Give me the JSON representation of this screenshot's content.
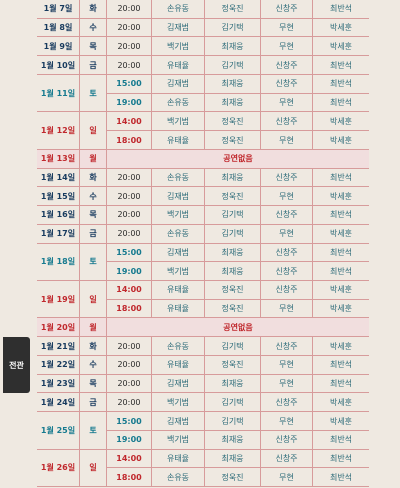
{
  "side_tab": {
    "label": "전관"
  },
  "off_label": "공연없음",
  "rows": [
    {
      "date": "1월 7일",
      "day": "화",
      "time": "20:00",
      "cast": [
        "손유동",
        "정욱진",
        "신창주",
        "최반석"
      ]
    },
    {
      "date": "1월 8일",
      "day": "수",
      "time": "20:00",
      "cast": [
        "김재범",
        "김기택",
        "무현",
        "박세훈"
      ]
    },
    {
      "date": "1월 9일",
      "day": "목",
      "time": "20:00",
      "cast": [
        "백기범",
        "최재웅",
        "무현",
        "박세훈"
      ]
    },
    {
      "date": "1월 10일",
      "day": "금",
      "time": "20:00",
      "cast": [
        "유태율",
        "김기택",
        "신창주",
        "최반석"
      ]
    },
    {
      "date": "1월 11일",
      "day": "토",
      "time": "15:00",
      "cast": [
        "김재범",
        "최재웅",
        "신창주",
        "최반석"
      ]
    },
    {
      "date": "",
      "day": "",
      "time": "19:00",
      "cast": [
        "손유동",
        "최재웅",
        "무현",
        "최반석"
      ]
    },
    {
      "date": "1월 12일",
      "day": "일",
      "time": "14:00",
      "cast": [
        "백기범",
        "정욱진",
        "신창주",
        "박세훈"
      ]
    },
    {
      "date": "",
      "day": "",
      "time": "18:00",
      "cast": [
        "유태율",
        "정욱진",
        "무현",
        "박세훈"
      ]
    },
    {
      "date": "1월 13일",
      "day": "월",
      "off": true
    },
    {
      "date": "1월 14일",
      "day": "화",
      "time": "20:00",
      "cast": [
        "손유동",
        "최재웅",
        "신창주",
        "최반석"
      ]
    },
    {
      "date": "1월 15일",
      "day": "수",
      "time": "20:00",
      "cast": [
        "김재범",
        "정욱진",
        "무현",
        "박세훈"
      ]
    },
    {
      "date": "1월 16일",
      "day": "목",
      "time": "20:00",
      "cast": [
        "백기범",
        "김기택",
        "신창주",
        "최반석"
      ]
    },
    {
      "date": "1월 17일",
      "day": "금",
      "time": "20:00",
      "cast": [
        "손유동",
        "김기택",
        "무현",
        "박세훈"
      ]
    },
    {
      "date": "1월 18일",
      "day": "토",
      "time": "15:00",
      "cast": [
        "김재범",
        "최재웅",
        "신창주",
        "최반석"
      ]
    },
    {
      "date": "",
      "day": "",
      "time": "19:00",
      "cast": [
        "백기범",
        "최재웅",
        "신창주",
        "최반석"
      ]
    },
    {
      "date": "1월 19일",
      "day": "일",
      "time": "14:00",
      "cast": [
        "유태율",
        "정욱진",
        "신창주",
        "박세훈"
      ]
    },
    {
      "date": "",
      "day": "",
      "time": "18:00",
      "cast": [
        "유태율",
        "정욱진",
        "무현",
        "박세훈"
      ]
    },
    {
      "date": "1월 20일",
      "day": "월",
      "off": true
    },
    {
      "date": "1월 21일",
      "day": "화",
      "time": "20:00",
      "cast": [
        "손유동",
        "김기택",
        "신창주",
        "박세훈"
      ]
    },
    {
      "date": "1월 22일",
      "day": "수",
      "time": "20:00",
      "cast": [
        "유태율",
        "정욱진",
        "무현",
        "최반석"
      ]
    },
    {
      "date": "1월 23일",
      "day": "목",
      "time": "20:00",
      "cast": [
        "김재범",
        "최재웅",
        "무현",
        "최반석"
      ]
    },
    {
      "date": "1월 24일",
      "day": "금",
      "time": "20:00",
      "cast": [
        "백기범",
        "김기택",
        "신창주",
        "박세훈"
      ]
    },
    {
      "date": "1월 25일",
      "day": "토",
      "time": "15:00",
      "cast": [
        "김재범",
        "김기택",
        "무현",
        "박세훈"
      ]
    },
    {
      "date": "",
      "day": "",
      "time": "19:00",
      "cast": [
        "백기범",
        "최재웅",
        "신창주",
        "최반석"
      ]
    },
    {
      "date": "1월 26일",
      "day": "일",
      "time": "14:00",
      "cast": [
        "유태율",
        "최재웅",
        "신창주",
        "최반석"
      ]
    },
    {
      "date": "",
      "day": "",
      "time": "18:00",
      "cast": [
        "손유동",
        "정욱진",
        "무현",
        "최반석"
      ]
    }
  ]
}
